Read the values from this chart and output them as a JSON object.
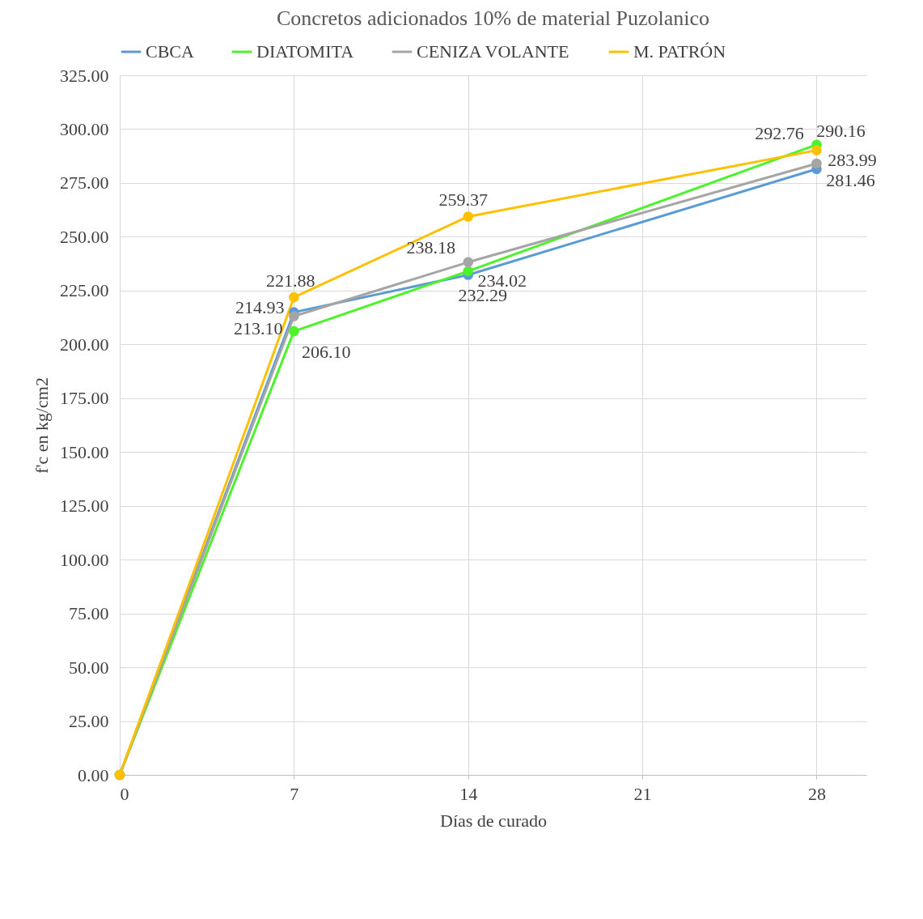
{
  "chart_data": {
    "type": "line",
    "title": "Concretos adicionados 10% de material Puzolanico",
    "xlabel": "Días de curado",
    "ylabel": "f'c en kg/cm2",
    "x": [
      0,
      7,
      14,
      28
    ],
    "series": [
      {
        "name": "CBCA",
        "color": "#5b9bd5",
        "values": [
          0,
          214.93,
          232.29,
          281.46
        ],
        "value_labels": [
          null,
          "214.93",
          "232.29",
          "281.46"
        ]
      },
      {
        "name": "DIATOMITA",
        "color": "#4cf22a",
        "values": [
          0,
          206.1,
          234.02,
          292.76
        ],
        "value_labels": [
          null,
          "206.10",
          "234.02",
          "292.76"
        ]
      },
      {
        "name": "CENIZA VOLANTE",
        "color": "#a5a5a5",
        "values": [
          0,
          213.1,
          238.18,
          283.99
        ],
        "value_labels": [
          null,
          "213.10",
          "238.18",
          "283.99"
        ]
      },
      {
        "name": "M. PATRÓN",
        "color": "#ffc000",
        "values": [
          0,
          221.88,
          259.37,
          290.16
        ],
        "value_labels": [
          null,
          "221.88",
          "259.37",
          "290.16"
        ]
      }
    ],
    "xlim": [
      0,
      30
    ],
    "xticks": [
      0,
      7,
      14,
      21,
      28
    ],
    "ylim": [
      0,
      325
    ],
    "yticks": [
      {
        "value": 0,
        "label": "0.00"
      },
      {
        "value": 25,
        "label": "25.00"
      },
      {
        "value": 50,
        "label": "50.00"
      },
      {
        "value": 75,
        "label": "75.00"
      },
      {
        "value": 100,
        "label": "100.00"
      },
      {
        "value": 125,
        "label": "125.00"
      },
      {
        "value": 150,
        "label": "150.00"
      },
      {
        "value": 175,
        "label": "175.00"
      },
      {
        "value": 200,
        "label": "200.00"
      },
      {
        "value": 225,
        "label": "225.00"
      },
      {
        "value": 250,
        "label": "250.00"
      },
      {
        "value": 275,
        "label": "275.00"
      },
      {
        "value": 300,
        "label": "300.00"
      },
      {
        "value": 325,
        "label": "325.00"
      }
    ],
    "grid": true,
    "legend": "top",
    "marker": "circle",
    "line_style": "solid"
  }
}
